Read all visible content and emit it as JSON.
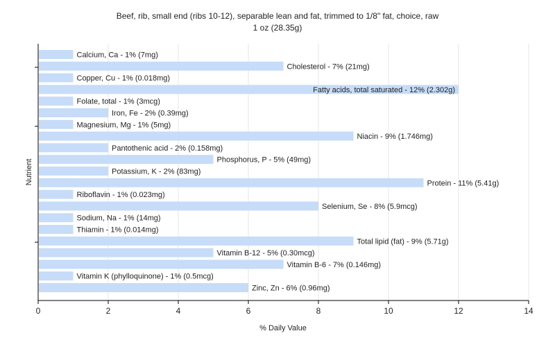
{
  "chart_data": {
    "type": "bar",
    "orientation": "horizontal",
    "title": "Beef, rib, small end (ribs 10-12), separable lean and fat, trimmed to 1/8\" fat, choice, raw",
    "subtitle": "1 oz (28.35g)",
    "xlabel": "% Daily Value",
    "ylabel": "Nutrient",
    "xlim": [
      0,
      14
    ],
    "xticks": [
      "0",
      "2",
      "4",
      "6",
      "8",
      "10",
      "12",
      "14"
    ],
    "grid": true,
    "bar_color": "#c6dcf8",
    "categories": [
      "Calcium, Ca",
      "Cholesterol",
      "Copper, Cu",
      "Fatty acids, total saturated",
      "Folate, total",
      "Iron, Fe",
      "Magnesium, Mg",
      "Niacin",
      "Pantothenic acid",
      "Phosphorus, P",
      "Potassium, K",
      "Protein",
      "Riboflavin",
      "Selenium, Se",
      "Sodium, Na",
      "Thiamin",
      "Total lipid (fat)",
      "Vitamin B-12",
      "Vitamin B-6",
      "Vitamin K (phylloquinone)",
      "Zinc, Zn"
    ],
    "values": [
      1,
      7,
      1,
      12,
      1,
      2,
      1,
      9,
      2,
      5,
      2,
      11,
      1,
      8,
      1,
      1,
      9,
      5,
      7,
      1,
      6
    ],
    "bar_labels": [
      "Calcium, Ca - 1% (7mg)",
      "Cholesterol - 7% (21mg)",
      "Copper, Cu - 1% (0.018mg)",
      "Fatty acids, total saturated - 12% (2.302g)",
      "Folate, total - 1% (3mcg)",
      "Iron, Fe - 2% (0.39mg)",
      "Magnesium, Mg - 1% (5mg)",
      "Niacin - 9% (1.746mg)",
      "Pantothenic acid - 2% (0.158mg)",
      "Phosphorus, P - 5% (49mg)",
      "Potassium, K - 2% (83mg)",
      "Protein - 11% (5.41g)",
      "Riboflavin - 1% (0.023mg)",
      "Selenium, Se - 8% (5.9mcg)",
      "Sodium, Na - 1% (14mg)",
      "Thiamin - 1% (0.014mg)",
      "Total lipid (fat) - 9% (5.71g)",
      "Vitamin B-12 - 5% (0.30mcg)",
      "Vitamin B-6 - 7% (0.146mg)",
      "Vitamin K (phylloquinone) - 1% (0.5mcg)",
      "Zinc, Zn - 6% (0.96mg)"
    ]
  }
}
